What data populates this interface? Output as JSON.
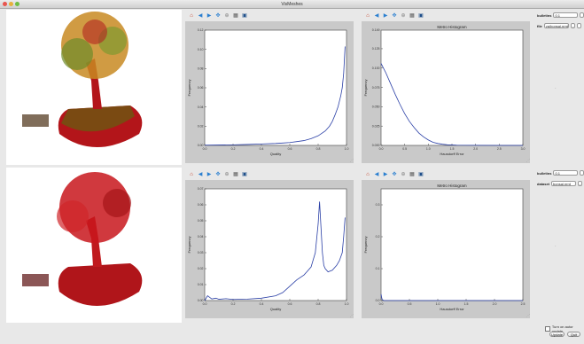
{
  "window": {
    "title": "VisMeshes"
  },
  "toolbar_icons": [
    "home-icon",
    "back-icon",
    "forward-icon",
    "pan-icon",
    "zoom-icon",
    "subplots-icon",
    "save-icon"
  ],
  "rows": [
    {
      "controls": {
        "first_label": "bulletins",
        "first_value": "0.1",
        "second_label": "file",
        "second_value": "va/bonsai.nrrd",
        "second_btn": "..."
      },
      "plots": [
        {
          "title": "",
          "xlabel": "Quality",
          "ylabel": "Frequency",
          "xticks": [
            "0.0",
            "0.2",
            "0.4",
            "0.6",
            "0.8",
            "1.0"
          ],
          "yticks": [
            "0.00",
            "0.02",
            "0.04",
            "0.06",
            "0.08",
            "0.10",
            "0.12"
          ]
        },
        {
          "title": "Metro Histogram",
          "xlabel": "Hausdorff Error",
          "ylabel": "Frequency",
          "xticks": [
            "0.0",
            "0.5",
            "1.0",
            "1.5",
            "2.0",
            "2.5",
            "3.0"
          ],
          "yticks": [
            "0.000",
            "0.025",
            "0.050",
            "0.075",
            "0.100",
            "0.125"
          ],
          "ytick_top": "0.149"
        }
      ]
    },
    {
      "controls": {
        "first_label": "bulletins",
        "first_value": "0.1",
        "second_label": "dataset",
        "second_value": "bonsai.nrrd",
        "second_btn": "..."
      },
      "plots": [
        {
          "title": "",
          "xlabel": "Quality",
          "ylabel": "Frequency",
          "xticks": [
            "0.0",
            "0.2",
            "0.4",
            "0.6",
            "0.8",
            "1.0"
          ],
          "yticks": [
            "0.00",
            "0.01",
            "0.02",
            "0.03",
            "0.04",
            "0.05",
            "0.06",
            "0.07"
          ]
        },
        {
          "title": "Metro Histogram",
          "xlabel": "Hausdorff Error",
          "ylabel": "Frequency",
          "xticks": [
            "0.0",
            "0.5",
            "1.0",
            "1.5",
            "2.0",
            "2.5"
          ],
          "yticks": [
            "0.0",
            "0.1",
            "0.2",
            "0.3"
          ]
        }
      ]
    }
  ],
  "chart_data": [
    {
      "type": "line",
      "title": "",
      "xlabel": "Quality",
      "ylabel": "Frequency",
      "xlim": [
        0,
        1
      ],
      "ylim": [
        0,
        0.12
      ],
      "series": [
        {
          "x": [
            0.0,
            0.1,
            0.2,
            0.3,
            0.4,
            0.5,
            0.55,
            0.6,
            0.65,
            0.7,
            0.75,
            0.8,
            0.85,
            0.88,
            0.9,
            0.92,
            0.94,
            0.96,
            0.97,
            0.98,
            0.99
          ],
          "y": [
            0.0002,
            0.0004,
            0.0006,
            0.001,
            0.0015,
            0.002,
            0.0025,
            0.003,
            0.004,
            0.005,
            0.007,
            0.01,
            0.015,
            0.02,
            0.025,
            0.032,
            0.04,
            0.052,
            0.06,
            0.075,
            0.103
          ]
        }
      ]
    },
    {
      "type": "line",
      "title": "Metro Histogram",
      "xlabel": "Hausdorff Error",
      "ylabel": "Frequency",
      "xlim": [
        0,
        3
      ],
      "ylim": [
        0,
        0.149
      ],
      "series": [
        {
          "x": [
            0.0,
            0.1,
            0.2,
            0.3,
            0.4,
            0.5,
            0.6,
            0.7,
            0.8,
            0.9,
            1.0,
            1.1,
            1.2,
            1.3,
            1.4,
            1.6,
            2.0,
            2.5,
            3.0
          ],
          "y": [
            0.106,
            0.094,
            0.08,
            0.066,
            0.053,
            0.041,
            0.031,
            0.023,
            0.016,
            0.011,
            0.007,
            0.004,
            0.0025,
            0.0015,
            0.0008,
            0.0003,
            0.0001,
            0.0,
            0.0
          ]
        }
      ]
    },
    {
      "type": "line",
      "title": "",
      "xlabel": "Quality",
      "ylabel": "Frequency",
      "xlim": [
        0,
        1
      ],
      "ylim": [
        0,
        0.07
      ],
      "series": [
        {
          "x": [
            0.0,
            0.02,
            0.05,
            0.08,
            0.1,
            0.15,
            0.2,
            0.3,
            0.4,
            0.5,
            0.55,
            0.6,
            0.65,
            0.7,
            0.72,
            0.75,
            0.78,
            0.8,
            0.81,
            0.82,
            0.83,
            0.84,
            0.85,
            0.87,
            0.9,
            0.93,
            0.95,
            0.97,
            0.98,
            0.99
          ],
          "y": [
            0.0,
            0.003,
            0.001,
            0.0015,
            0.0008,
            0.0012,
            0.0007,
            0.0009,
            0.0015,
            0.003,
            0.005,
            0.009,
            0.013,
            0.016,
            0.018,
            0.021,
            0.03,
            0.048,
            0.062,
            0.046,
            0.03,
            0.022,
            0.02,
            0.018,
            0.019,
            0.022,
            0.025,
            0.03,
            0.04,
            0.052
          ]
        }
      ]
    },
    {
      "type": "line",
      "title": "Metro Histogram",
      "xlabel": "Hausdorff Error",
      "ylabel": "Frequency",
      "xlim": [
        0,
        2.5
      ],
      "ylim": [
        0,
        0.35
      ],
      "series": [
        {
          "x": [
            0.0,
            0.01,
            0.02,
            0.05,
            0.1,
            0.5,
            1.0,
            1.5,
            2.0,
            2.5
          ],
          "y": [
            0.02,
            0.01,
            0.003,
            0.0,
            0.0,
            0.0,
            0.0,
            0.0,
            0.0,
            0.0
          ]
        }
      ]
    }
  ],
  "bottom": {
    "checkbox_label": "Turn on autor update",
    "update_label": "Update",
    "quit_label": "Quit"
  }
}
